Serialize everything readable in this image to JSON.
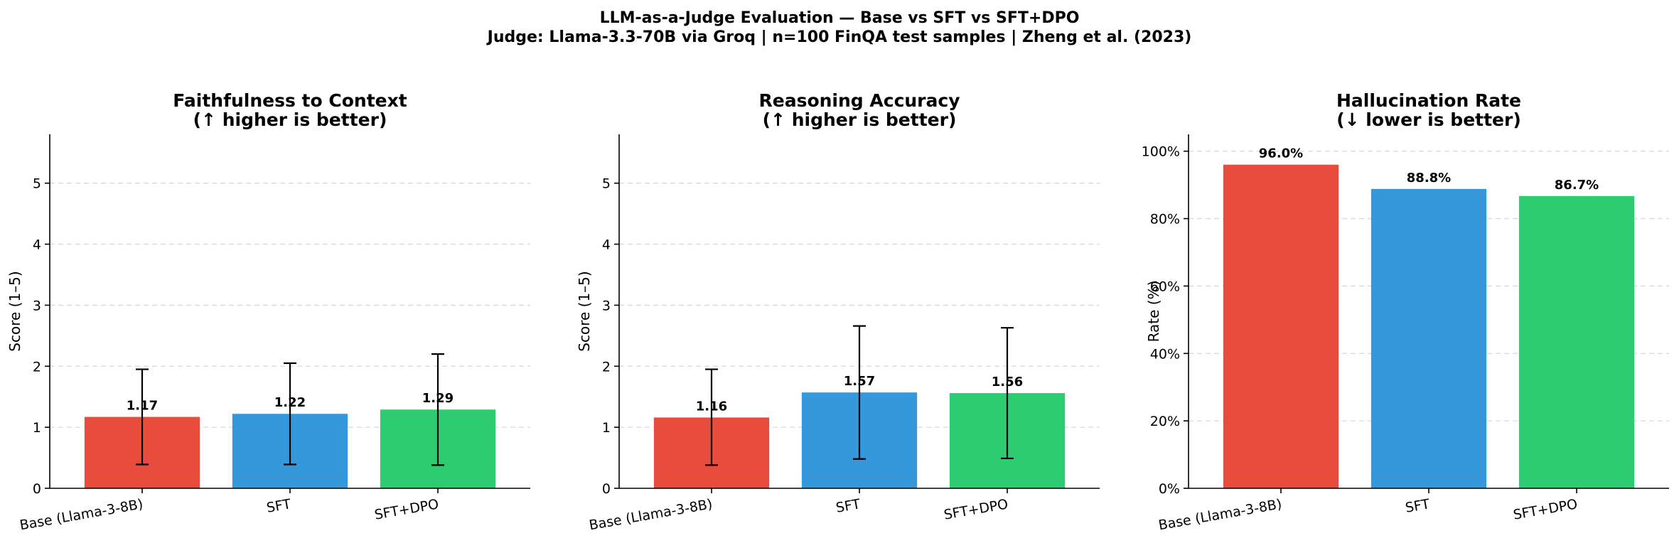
{
  "title_line1": "LLM-as-a-Judge Evaluation — Base vs SFT vs SFT+DPO",
  "title_line2": "Judge: Llama-3.3-70B via Groq  |  n=100 FinQA test samples  |  Zheng et al. (2023)",
  "colors": {
    "base": "#e74c3c",
    "sft": "#3498db",
    "sft_dpo": "#2ecc71"
  },
  "chart_data": [
    {
      "type": "bar",
      "title": "Faithfulness to Context",
      "subtitle": "(↑ higher is better)",
      "ylabel": "Score (1–5)",
      "categories": [
        "Base (Llama-3-8B)",
        "SFT",
        "SFT+DPO"
      ],
      "values": [
        1.17,
        1.22,
        1.29
      ],
      "value_labels": [
        "1.17",
        "1.22",
        "1.29"
      ],
      "error_low": [
        0.39,
        0.39,
        0.38
      ],
      "error_high": [
        1.95,
        2.05,
        2.2
      ],
      "ylim": [
        0,
        5.8
      ],
      "yticks": [
        0,
        1,
        2,
        3,
        4,
        5
      ],
      "ytick_labels": [
        "0",
        "1",
        "2",
        "3",
        "4",
        "5"
      ],
      "grid": true
    },
    {
      "type": "bar",
      "title": "Reasoning Accuracy",
      "subtitle": "(↑ higher is better)",
      "ylabel": "Score (1–5)",
      "categories": [
        "Base (Llama-3-8B)",
        "SFT",
        "SFT+DPO"
      ],
      "values": [
        1.16,
        1.57,
        1.56
      ],
      "value_labels": [
        "1.16",
        "1.57",
        "1.56"
      ],
      "error_low": [
        0.38,
        0.48,
        0.49
      ],
      "error_high": [
        1.95,
        2.66,
        2.63
      ],
      "ylim": [
        0,
        5.8
      ],
      "yticks": [
        0,
        1,
        2,
        3,
        4,
        5
      ],
      "ytick_labels": [
        "0",
        "1",
        "2",
        "3",
        "4",
        "5"
      ],
      "grid": true
    },
    {
      "type": "bar",
      "title": "Hallucination Rate",
      "subtitle": "(↓ lower is better)",
      "ylabel": "Rate (%)",
      "categories": [
        "Base (Llama-3-8B)",
        "SFT",
        "SFT+DPO"
      ],
      "values": [
        96.0,
        88.8,
        86.7
      ],
      "value_labels": [
        "96.0%",
        "88.8%",
        "86.7%"
      ],
      "ylim": [
        0,
        105
      ],
      "yticks": [
        0,
        20,
        40,
        60,
        80,
        100
      ],
      "ytick_labels": [
        "0%",
        "20%",
        "40%",
        "60%",
        "80%",
        "100%"
      ],
      "grid": true
    }
  ]
}
